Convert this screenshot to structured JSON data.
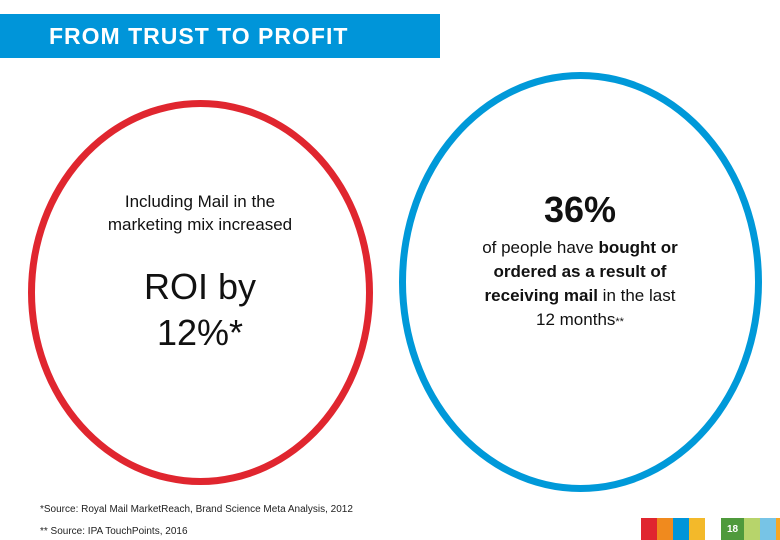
{
  "banner": {
    "title": "FROM TRUST TO PROFIT",
    "color": "#0095d9"
  },
  "left_circle": {
    "color": "#e0262f",
    "intro": "Including Mail in the marketing mix increased",
    "big_line1": "ROI by",
    "big_line2": "12%*"
  },
  "right_circle": {
    "color": "#0099d9",
    "big": "36%",
    "text_prefix": "of people have ",
    "text_bold": "bought or ordered as a result of receiving mail",
    "text_suffix": " in the last 12 months",
    "text_mark": "**"
  },
  "footnotes": [
    "*Source: Royal Mail MarketReach, Brand Science Meta Analysis, 2012",
    "** Source: IPA TouchPoints, 2016"
  ],
  "footer_strip": {
    "colors": [
      "#e0262f",
      "#f08a1e",
      "#0095d9",
      "#f3b92a",
      "#ffffff"
    ],
    "page_bg": "#4f9a3c",
    "trailing_colors": [
      "#b7d46b",
      "#77c4e6",
      "#f5a623"
    ],
    "page_number": "18"
  }
}
